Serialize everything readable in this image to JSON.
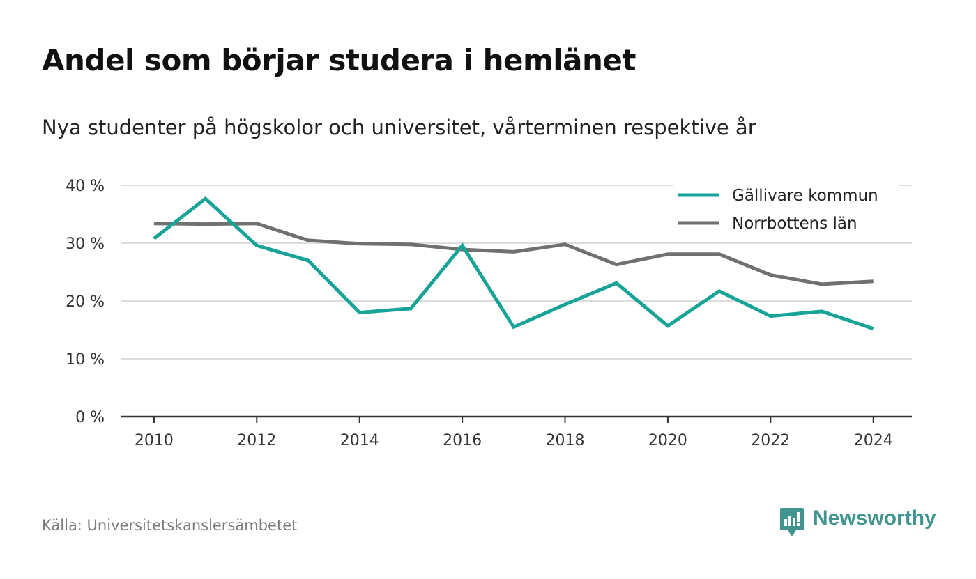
{
  "header": {
    "title": "Andel som börjar studera i hemlänet",
    "subtitle": "Nya studenter på högskolor och universitet, vårterminen respektive år"
  },
  "footer": {
    "source": "Källa: Universitetskanslersämbetet",
    "brand_name": "Newsworthy",
    "brand_icon": "newsworthy-logo-icon"
  },
  "colors": {
    "accent": "#17a398",
    "secondary": "#707070",
    "grid": "#dddddd",
    "axis": "#333333",
    "brand": "#41948f"
  },
  "chart_data": {
    "type": "line",
    "x": [
      2010,
      2011,
      2012,
      2013,
      2014,
      2015,
      2016,
      2017,
      2018,
      2019,
      2020,
      2021,
      2022,
      2023,
      2024
    ],
    "series": [
      {
        "name": "Gällivare kommun",
        "color": "#17a398",
        "values": [
          30.8,
          37.7,
          29.6,
          27.0,
          18.0,
          18.7,
          29.6,
          15.5,
          19.4,
          23.1,
          15.7,
          21.7,
          17.4,
          18.2,
          15.2
        ]
      },
      {
        "name": "Norrbottens län",
        "color": "#707070",
        "values": [
          33.4,
          33.3,
          33.4,
          30.5,
          29.9,
          29.8,
          28.9,
          28.5,
          29.8,
          26.3,
          28.1,
          28.1,
          24.5,
          22.9,
          23.4
        ]
      }
    ],
    "x_ticks": [
      "2010",
      "2012",
      "2014",
      "2016",
      "2018",
      "2020",
      "2022",
      "2024"
    ],
    "y_ticks": [
      "0 %",
      "10 %",
      "20 %",
      "30 %",
      "40 %"
    ],
    "y_tick_values": [
      0,
      10,
      20,
      30,
      40
    ],
    "ylim": [
      0,
      40
    ],
    "xlim": [
      2009.35,
      2024.75
    ],
    "grid": true,
    "legend_position": "top-right",
    "xlabel": "",
    "ylabel": ""
  }
}
